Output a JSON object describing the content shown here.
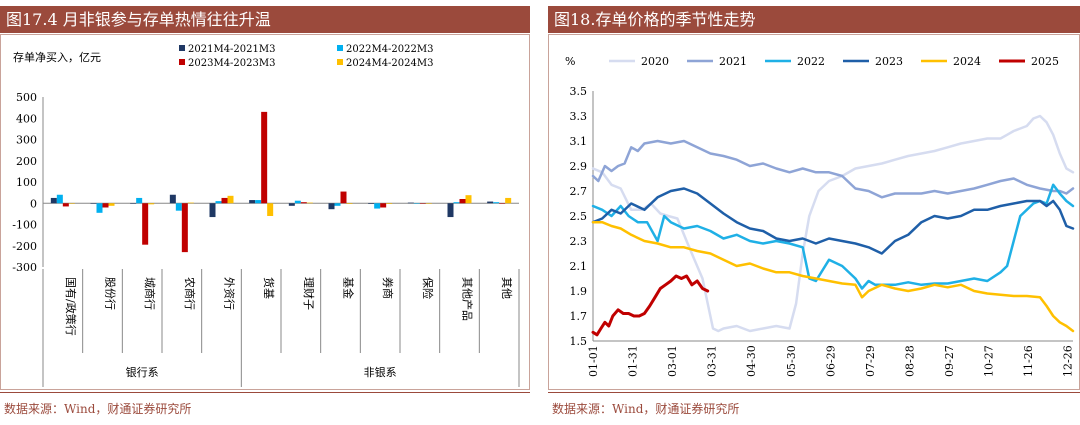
{
  "left": {
    "title": "图17.4 月非银参与存单热情往往升温",
    "source": "数据来源：Wind，财通证券研究所",
    "chart_data": {
      "type": "bar",
      "ylabel": "存单净买入，亿元",
      "ylim": [
        -300,
        500
      ],
      "yticks": [
        -300,
        -200,
        -100,
        0,
        100,
        200,
        300,
        400,
        500
      ],
      "grid": false,
      "legend": "top",
      "categories": [
        "国有/政策行",
        "股份行",
        "城商行",
        "农商行",
        "外资行",
        "货基",
        "理财子",
        "基金",
        "券商",
        "保险",
        "其他产品",
        "其他"
      ],
      "groups": [
        {
          "label": "银行系",
          "from": 0,
          "to": 4
        },
        {
          "label": "非银系",
          "from": 5,
          "to": 11
        }
      ],
      "series": [
        {
          "name": "2021M4-2021M3",
          "color": "#1f3864",
          "values": [
            25,
            -2,
            0,
            40,
            -65,
            15,
            -12,
            -28,
            -3,
            3,
            -65,
            8
          ]
        },
        {
          "name": "2022M4-2022M3",
          "color": "#00b0f0",
          "values": [
            40,
            -45,
            25,
            -35,
            10,
            15,
            12,
            -12,
            -25,
            0,
            5,
            5
          ]
        },
        {
          "name": "2023M4-2023M3",
          "color": "#c00000",
          "values": [
            -15,
            -20,
            -195,
            -230,
            25,
            430,
            5,
            55,
            -20,
            0,
            20,
            0
          ]
        },
        {
          "name": "2024M4-2024M3",
          "color": "#ffc000",
          "values": [
            0,
            -12,
            -5,
            3,
            35,
            -60,
            3,
            -3,
            -3,
            0,
            38,
            25
          ]
        }
      ]
    }
  },
  "right": {
    "title": "图18.存单价格的季节性走势",
    "source": "数据来源：Wind，财通证券研究所",
    "chart_data": {
      "type": "line",
      "ylabel": "%",
      "ylim": [
        1.5,
        3.5
      ],
      "yticks": [
        1.5,
        1.7,
        1.9,
        2.1,
        2.3,
        2.5,
        2.7,
        2.9,
        3.1,
        3.3,
        3.5
      ],
      "xlabels": [
        "01-01",
        "01-31",
        "03-01",
        "03-31",
        "04-30",
        "05-30",
        "06-29",
        "07-29",
        "08-28",
        "09-27",
        "10-27",
        "11-26",
        "12-26"
      ],
      "grid": false,
      "legend": "top",
      "series": [
        {
          "name": "2020",
          "color": "#d6dcf0",
          "width": 2.5,
          "x": [
            1,
            8,
            15,
            22,
            30,
            38,
            45,
            52,
            58,
            65,
            72,
            78,
            84,
            88,
            92,
            96,
            100,
            110,
            120,
            130,
            140,
            150,
            155,
            160,
            165,
            172,
            180,
            190,
            200,
            210,
            220,
            230,
            240,
            250,
            260,
            270,
            280,
            290,
            300,
            310,
            315,
            320,
            325,
            330,
            335,
            340,
            345,
            350,
            355,
            360,
            365
          ],
          "y": [
            2.88,
            2.85,
            2.75,
            2.72,
            2.55,
            2.55,
            2.6,
            2.52,
            2.5,
            2.48,
            2.3,
            2.15,
            2.0,
            1.8,
            1.6,
            1.58,
            1.6,
            1.62,
            1.58,
            1.6,
            1.62,
            1.6,
            1.8,
            2.2,
            2.5,
            2.7,
            2.78,
            2.82,
            2.88,
            2.9,
            2.92,
            2.95,
            2.98,
            3.0,
            3.02,
            3.05,
            3.08,
            3.1,
            3.12,
            3.12,
            3.15,
            3.18,
            3.2,
            3.22,
            3.28,
            3.3,
            3.25,
            3.15,
            3.0,
            2.88,
            2.85
          ]
        },
        {
          "name": "2021",
          "color": "#8ea4d6",
          "width": 2.5,
          "x": [
            1,
            5,
            10,
            15,
            20,
            25,
            30,
            35,
            40,
            50,
            60,
            70,
            80,
            90,
            100,
            110,
            120,
            130,
            140,
            150,
            160,
            170,
            180,
            190,
            200,
            210,
            220,
            230,
            240,
            250,
            260,
            270,
            280,
            290,
            300,
            310,
            320,
            330,
            340,
            350,
            355,
            360,
            365
          ],
          "y": [
            2.82,
            2.78,
            2.9,
            2.86,
            2.9,
            2.92,
            3.05,
            3.02,
            3.08,
            3.1,
            3.08,
            3.1,
            3.05,
            3.0,
            2.98,
            2.95,
            2.9,
            2.92,
            2.88,
            2.85,
            2.88,
            2.85,
            2.85,
            2.82,
            2.72,
            2.7,
            2.65,
            2.68,
            2.68,
            2.68,
            2.7,
            2.68,
            2.7,
            2.72,
            2.75,
            2.78,
            2.8,
            2.75,
            2.72,
            2.7,
            2.7,
            2.68,
            2.72
          ]
        },
        {
          "name": "2022",
          "color": "#1fb0e6",
          "width": 2.5,
          "x": [
            1,
            8,
            15,
            22,
            28,
            35,
            42,
            50,
            55,
            60,
            70,
            80,
            90,
            100,
            110,
            120,
            130,
            140,
            150,
            160,
            165,
            170,
            180,
            190,
            200,
            205,
            210,
            215,
            220,
            230,
            240,
            250,
            260,
            270,
            280,
            290,
            300,
            310,
            315,
            320,
            325,
            330,
            335,
            340,
            345,
            350,
            355,
            360,
            365
          ],
          "y": [
            2.58,
            2.55,
            2.5,
            2.58,
            2.5,
            2.45,
            2.45,
            2.3,
            2.5,
            2.45,
            2.4,
            2.42,
            2.38,
            2.32,
            2.35,
            2.3,
            2.28,
            2.3,
            2.28,
            2.25,
            2.0,
            1.98,
            2.15,
            2.1,
            2.0,
            1.92,
            1.98,
            1.95,
            1.95,
            1.95,
            1.97,
            1.95,
            1.96,
            1.96,
            1.98,
            2.0,
            1.98,
            2.05,
            2.1,
            2.3,
            2.5,
            2.55,
            2.6,
            2.62,
            2.6,
            2.75,
            2.68,
            2.62,
            2.58
          ]
        },
        {
          "name": "2023",
          "color": "#1f5fa8",
          "width": 2.5,
          "x": [
            1,
            8,
            15,
            22,
            30,
            40,
            50,
            60,
            70,
            80,
            90,
            100,
            110,
            120,
            130,
            140,
            150,
            160,
            170,
            180,
            190,
            200,
            210,
            220,
            230,
            240,
            250,
            260,
            270,
            280,
            290,
            300,
            310,
            320,
            330,
            340,
            345,
            350,
            355,
            360,
            365
          ],
          "y": [
            2.45,
            2.48,
            2.55,
            2.52,
            2.6,
            2.55,
            2.65,
            2.7,
            2.72,
            2.68,
            2.6,
            2.52,
            2.45,
            2.4,
            2.38,
            2.32,
            2.3,
            2.32,
            2.28,
            2.32,
            2.3,
            2.28,
            2.25,
            2.2,
            2.3,
            2.35,
            2.45,
            2.5,
            2.48,
            2.5,
            2.55,
            2.55,
            2.58,
            2.6,
            2.62,
            2.62,
            2.58,
            2.62,
            2.55,
            2.42,
            2.4
          ]
        },
        {
          "name": "2024",
          "color": "#ffc000",
          "width": 2.5,
          "x": [
            1,
            8,
            15,
            22,
            30,
            40,
            50,
            60,
            70,
            80,
            90,
            100,
            110,
            120,
            130,
            140,
            150,
            160,
            170,
            180,
            190,
            200,
            205,
            210,
            220,
            230,
            240,
            250,
            260,
            270,
            280,
            290,
            300,
            310,
            320,
            330,
            340,
            345,
            350,
            355,
            360,
            365
          ],
          "y": [
            2.45,
            2.45,
            2.42,
            2.4,
            2.35,
            2.3,
            2.28,
            2.25,
            2.25,
            2.22,
            2.2,
            2.15,
            2.1,
            2.12,
            2.08,
            2.05,
            2.05,
            2.02,
            2.0,
            1.98,
            1.96,
            1.95,
            1.85,
            1.9,
            1.95,
            1.92,
            1.9,
            1.92,
            1.95,
            1.93,
            1.95,
            1.9,
            1.88,
            1.87,
            1.86,
            1.86,
            1.85,
            1.78,
            1.7,
            1.65,
            1.62,
            1.58
          ]
        },
        {
          "name": "2025",
          "color": "#c00000",
          "width": 3,
          "x": [
            1,
            4,
            7,
            10,
            13,
            16,
            20,
            24,
            28,
            32,
            36,
            40,
            44,
            48,
            52,
            56,
            60,
            64,
            68,
            72,
            76,
            80,
            84,
            88
          ],
          "y": [
            1.57,
            1.55,
            1.6,
            1.65,
            1.62,
            1.7,
            1.75,
            1.72,
            1.72,
            1.7,
            1.7,
            1.72,
            1.78,
            1.85,
            1.92,
            1.95,
            1.98,
            2.02,
            2.0,
            2.02,
            1.95,
            1.98,
            1.92,
            1.9
          ]
        }
      ]
    }
  }
}
